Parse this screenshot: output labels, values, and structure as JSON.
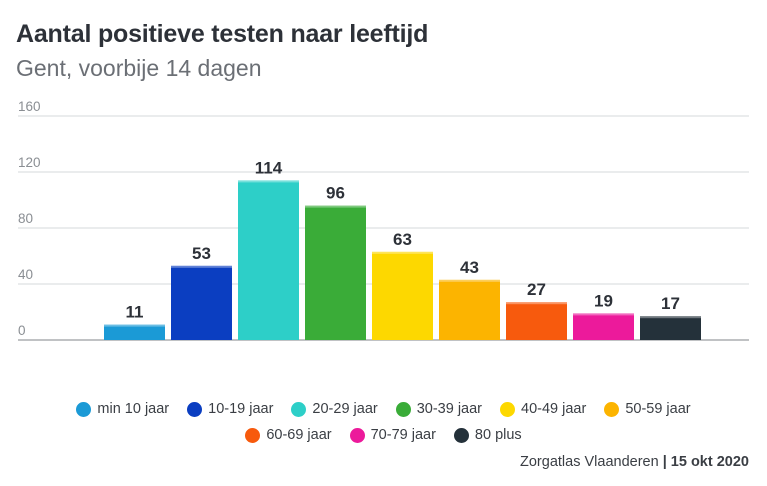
{
  "title": "Aantal positieve testen naar leeftijd",
  "subtitle": "Gent, voorbije 14 dagen",
  "source": {
    "label": "Zorgatlas Vlaanderen",
    "separator": "|",
    "date": "15 okt 2020"
  },
  "chart_data": {
    "type": "bar",
    "categories": [
      "min 10 jaar",
      "10-19 jaar",
      "20-29 jaar",
      "30-39 jaar",
      "40-49 jaar",
      "50-59 jaar",
      "60-69 jaar",
      "70-79 jaar",
      "80 plus"
    ],
    "values": [
      11,
      53,
      114,
      96,
      63,
      43,
      27,
      19,
      17
    ],
    "colors": [
      "#1b9ad6",
      "#0b3ec1",
      "#2dcfc8",
      "#3aac38",
      "#fdd800",
      "#fcb400",
      "#f75a0d",
      "#ec1a9b",
      "#24313a"
    ],
    "ylim": [
      0,
      160
    ],
    "yticks": [
      0,
      40,
      80,
      120,
      160
    ],
    "xlabel": "",
    "ylabel": "",
    "grid": true,
    "legend": "bottom"
  }
}
